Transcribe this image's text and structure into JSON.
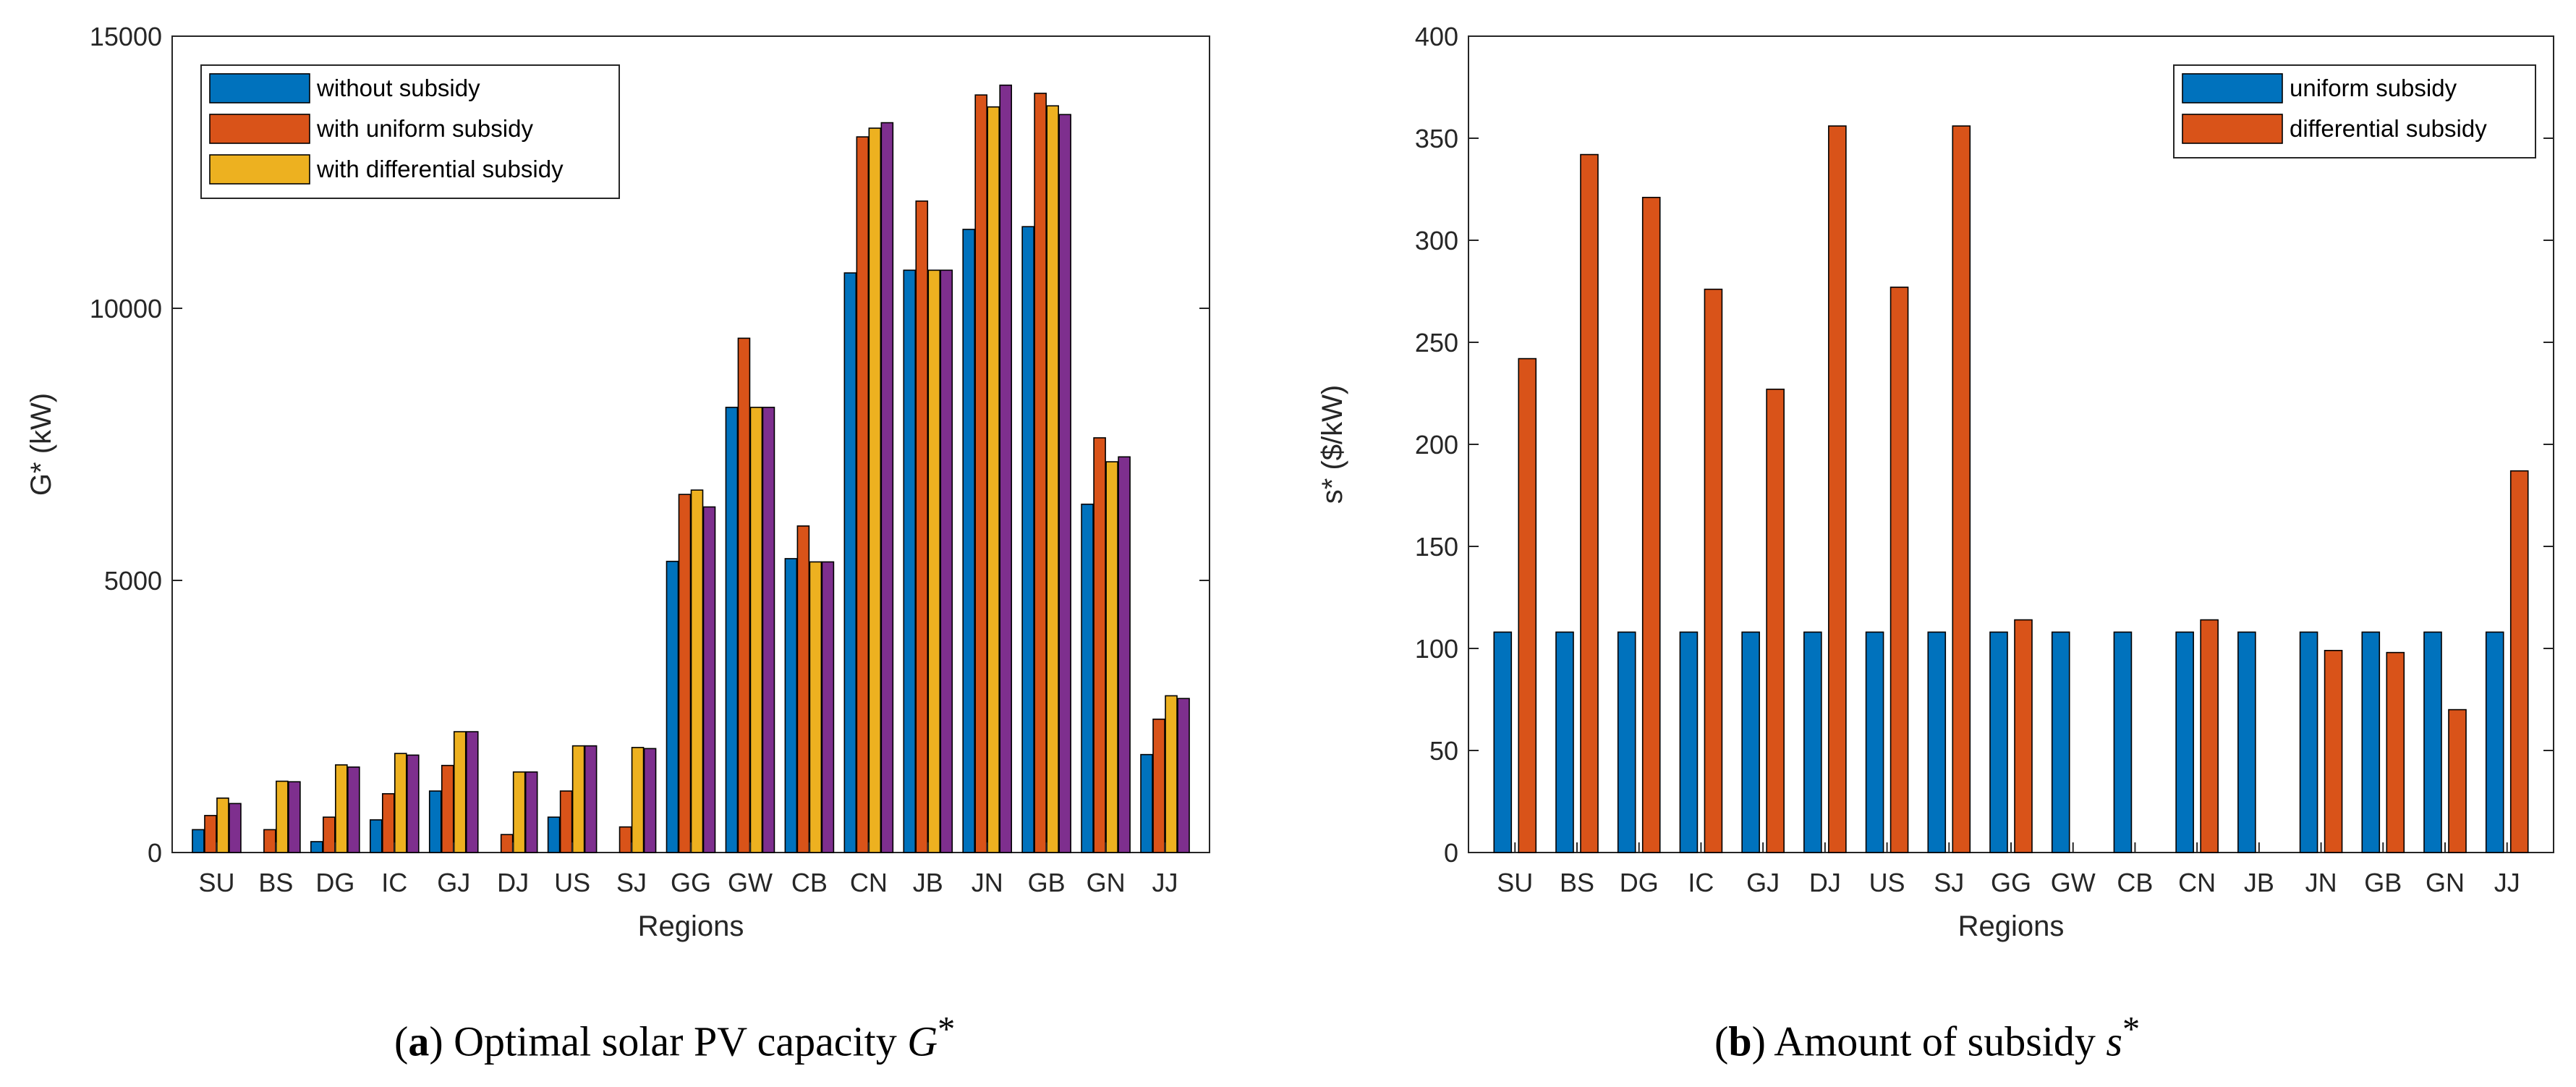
{
  "charts": [
    {
      "id": "a",
      "type": "bar",
      "caption": {
        "letter": "a",
        "text": "Optimal solar PV capacity",
        "symbol": "G",
        "sup": "*"
      },
      "ylabel": "G* (kW)",
      "xlabel": "Regions",
      "ylim": [
        0,
        15000
      ],
      "yticks": [
        0,
        5000,
        10000,
        15000
      ],
      "categories": [
        "SU",
        "BS",
        "DG",
        "IC",
        "GJ",
        "DJ",
        "US",
        "SJ",
        "GG",
        "GW",
        "CB",
        "CN",
        "JB",
        "JN",
        "GB",
        "GN",
        "JJ"
      ],
      "legend_position": "top-left",
      "series": [
        {
          "name": "without subsidy",
          "color": "#0072BD",
          "in_legend": true,
          "values": [
            420,
            0,
            200,
            600,
            1130,
            0,
            650,
            0,
            5350,
            8180,
            5400,
            10650,
            10700,
            11450,
            11500,
            6400,
            1800
          ]
        },
        {
          "name": "with uniform subsidy",
          "color": "#D95319",
          "in_legend": true,
          "values": [
            680,
            420,
            650,
            1080,
            1600,
            330,
            1130,
            470,
            6580,
            9450,
            6000,
            13150,
            11970,
            13920,
            13950,
            7620,
            2450
          ]
        },
        {
          "name": "with differential subsidy",
          "color": "#EDB120",
          "in_legend": true,
          "values": [
            1000,
            1310,
            1610,
            1820,
            2220,
            1480,
            1960,
            1930,
            6660,
            8180,
            5340,
            13310,
            10700,
            13700,
            13720,
            7180,
            2880
          ]
        },
        {
          "name": "",
          "color": "#7E2F8E",
          "in_legend": false,
          "values": [
            900,
            1300,
            1570,
            1790,
            2220,
            1480,
            1960,
            1910,
            6350,
            8180,
            5340,
            13410,
            10700,
            14100,
            13560,
            7270,
            2830
          ]
        }
      ]
    },
    {
      "id": "b",
      "type": "bar",
      "caption": {
        "letter": "b",
        "text": "Amount of subsidy",
        "symbol": "s",
        "sup": "*"
      },
      "ylabel": "s* ($/kW)",
      "xlabel": "Regions",
      "ylim": [
        0,
        400
      ],
      "yticks": [
        0,
        50,
        100,
        150,
        200,
        250,
        300,
        350,
        400
      ],
      "categories": [
        "SU",
        "BS",
        "DG",
        "IC",
        "GJ",
        "DJ",
        "US",
        "SJ",
        "GG",
        "GW",
        "CB",
        "CN",
        "JB",
        "JN",
        "GB",
        "GN",
        "JJ"
      ],
      "legend_position": "top-right",
      "series": [
        {
          "name": "uniform subsidy",
          "color": "#0072BD",
          "in_legend": true,
          "values": [
            108,
            108,
            108,
            108,
            108,
            108,
            108,
            108,
            108,
            108,
            108,
            108,
            108,
            108,
            108,
            108,
            108
          ]
        },
        {
          "name": "differential subsidy",
          "color": "#D95319",
          "in_legend": true,
          "values": [
            242,
            342,
            321,
            276,
            227,
            356,
            277,
            356,
            114,
            0,
            0,
            114,
            0,
            99,
            98,
            70,
            187
          ]
        }
      ]
    }
  ]
}
